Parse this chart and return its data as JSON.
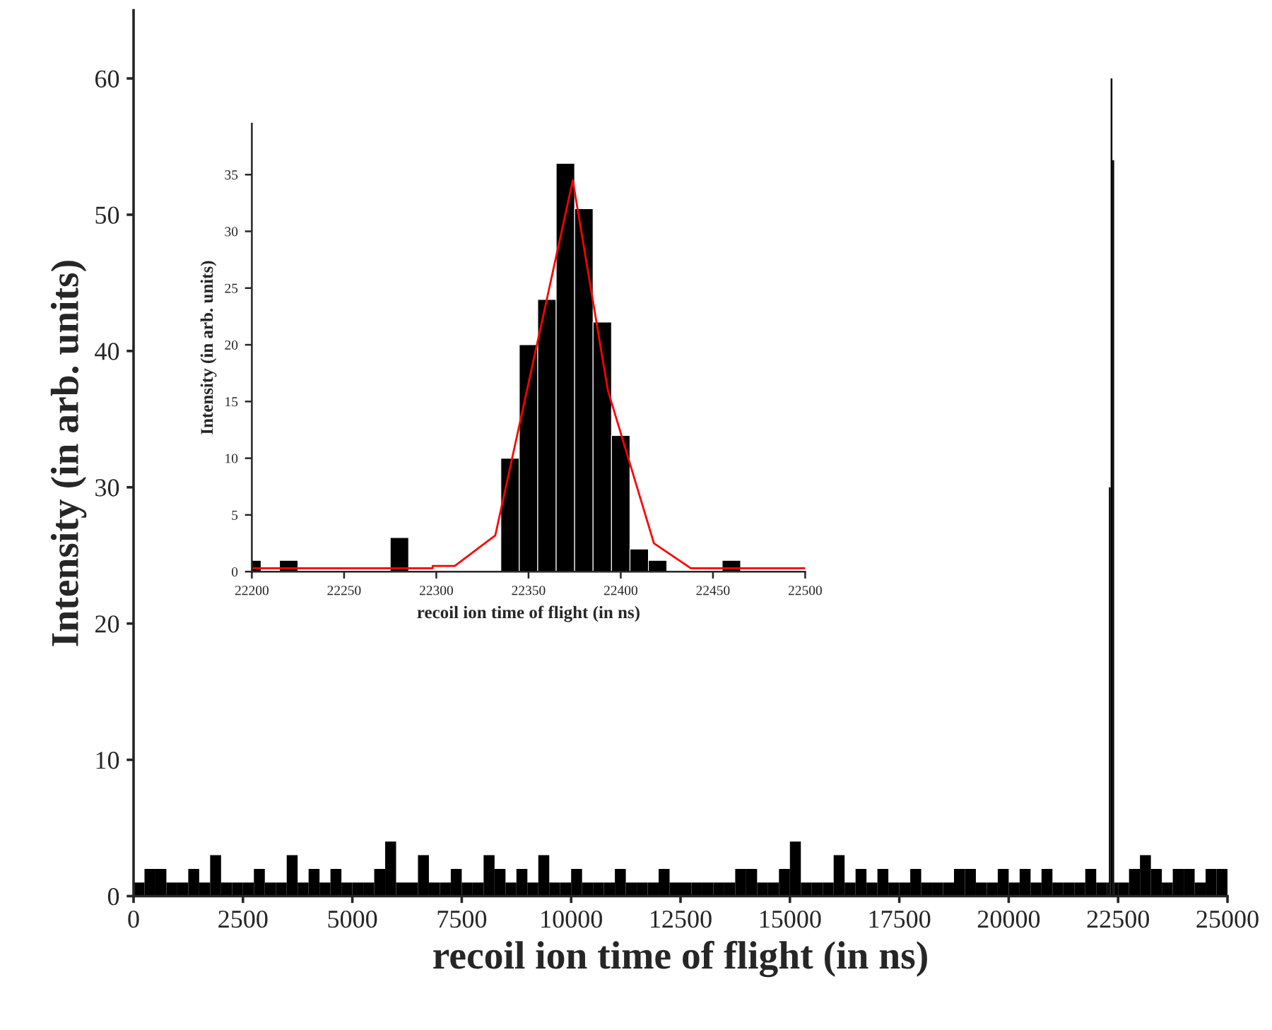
{
  "chart_data": [
    {
      "type": "histogram",
      "xlabel": "recoil ion time of flight (in ns)",
      "ylabel": "Intensity (in arb. units)",
      "color": "#000000",
      "bins": [
        0,
        250,
        500,
        750,
        1000,
        1250,
        1500,
        1750,
        2000,
        2250,
        2500,
        2750,
        3000,
        3250,
        3500,
        3750,
        4000,
        4250,
        4500,
        4750,
        5000,
        5250,
        5500,
        5750,
        6000,
        6250,
        6500,
        6750,
        7000,
        7250,
        7500,
        7750,
        8000,
        8250,
        8500,
        8750,
        9000,
        9250,
        9500,
        9750,
        10000,
        10250,
        10500,
        10750,
        11000,
        11250,
        11500,
        11750,
        12000,
        12250,
        12500,
        12750,
        13000,
        13250,
        13500,
        13750,
        14000,
        14250,
        14500,
        14750,
        15000,
        15250,
        15500,
        15750,
        16000,
        16250,
        16500,
        16750,
        17000,
        17250,
        17500,
        17750,
        18000,
        18250,
        18500,
        18750,
        19000,
        19250,
        19500,
        19750,
        20000,
        20250,
        20500,
        20750,
        21000,
        21250,
        21500,
        21750,
        22000,
        22250,
        22290,
        22330,
        22370,
        22410,
        22500,
        22750,
        23000,
        23250,
        23500,
        23750,
        24000,
        24250,
        24500,
        24750,
        25000
      ],
      "values": [
        1,
        2,
        2,
        1,
        1,
        2,
        1,
        3,
        1,
        1,
        1,
        2,
        1,
        1,
        3,
        1,
        2,
        1,
        2,
        1,
        1,
        1,
        2,
        4,
        1,
        1,
        3,
        1,
        1,
        2,
        1,
        1,
        3,
        2,
        1,
        2,
        1,
        3,
        1,
        1,
        2,
        1,
        1,
        1,
        2,
        1,
        1,
        1,
        2,
        1,
        1,
        1,
        1,
        1,
        1,
        2,
        2,
        1,
        1,
        2,
        4,
        1,
        1,
        1,
        3,
        1,
        2,
        1,
        2,
        1,
        1,
        2,
        1,
        1,
        1,
        2,
        2,
        1,
        1,
        2,
        1,
        2,
        1,
        2,
        1,
        1,
        1,
        2,
        1,
        1,
        30,
        60,
        54,
        1,
        1,
        2,
        3,
        2,
        1,
        2,
        2,
        1,
        2,
        2
      ],
      "xlim": [
        0,
        25000
      ],
      "ylim": [
        0,
        65
      ],
      "xticks": [
        0,
        2500,
        5000,
        7500,
        10000,
        12500,
        15000,
        17500,
        20000,
        22500,
        25000
      ],
      "yticks": [
        0,
        10,
        20,
        30,
        40,
        50,
        60
      ]
    },
    {
      "type": "histogram",
      "xlabel": "recoil ion time of flight (in ns)",
      "ylabel": "Intensity (in arb. units)",
      "color": "#000000",
      "bins": [
        22200,
        22205,
        22215,
        22225,
        22275,
        22285,
        22335,
        22345,
        22355,
        22365,
        22375,
        22385,
        22395,
        22405,
        22415,
        22425,
        22455,
        22465
      ],
      "values": [
        1,
        0,
        1,
        0,
        3,
        0,
        10,
        20,
        24,
        36,
        32,
        22,
        12,
        2,
        1,
        0,
        1
      ],
      "series": [
        {
          "type": "line",
          "color": "#ff0000",
          "x": [
            22200,
            22298,
            22298,
            22310,
            22332,
            22374,
            22393,
            22418,
            22438,
            22500
          ],
          "values": [
            0.3,
            0.3,
            0.5,
            0.5,
            3.2,
            34.5,
            16,
            2.5,
            0.3,
            0.3
          ]
        }
      ],
      "xlim": [
        22200,
        22500
      ],
      "ylim": [
        0,
        39.5
      ],
      "xticks": [
        22200,
        22250,
        22300,
        22350,
        22400,
        22450,
        22500
      ],
      "yticks": [
        0,
        5,
        10,
        15,
        20,
        25,
        30,
        35
      ]
    }
  ]
}
